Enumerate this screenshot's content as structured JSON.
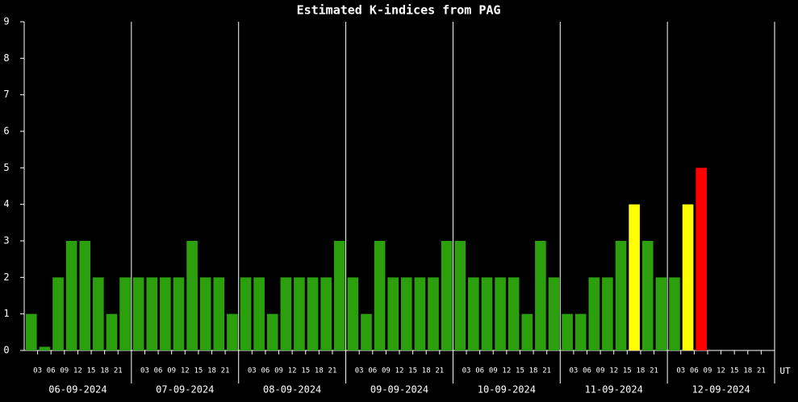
{
  "chart_data": {
    "type": "bar",
    "title": "Estimated K-indices from PAG",
    "x_unit": "UT",
    "days": [
      "06-09-2024",
      "07-09-2024",
      "08-09-2024",
      "09-09-2024",
      "10-09-2024",
      "11-09-2024",
      "12-09-2024"
    ],
    "hours": [
      "03",
      "06",
      "09",
      "12",
      "15",
      "18",
      "21"
    ],
    "values": [
      1,
      0.1,
      2,
      3,
      3,
      2,
      1,
      2,
      2,
      2,
      2,
      2,
      3,
      2,
      2,
      1,
      2,
      2,
      1,
      2,
      2,
      2,
      2,
      3,
      2,
      1,
      3,
      2,
      2,
      2,
      2,
      3,
      3,
      2,
      2,
      2,
      2,
      1,
      3,
      2,
      1,
      1,
      2,
      2,
      3,
      4,
      3,
      2,
      2,
      4,
      5,
      null,
      null,
      null,
      null,
      null
    ],
    "colors": [
      "#2ca00c",
      "#2ca00c",
      "#2ca00c",
      "#2ca00c",
      "#2ca00c",
      "#2ca00c",
      "#2ca00c",
      "#2ca00c",
      "#2ca00c",
      "#2ca00c",
      "#2ca00c",
      "#2ca00c",
      "#2ca00c",
      "#2ca00c",
      "#2ca00c",
      "#2ca00c",
      "#2ca00c",
      "#2ca00c",
      "#2ca00c",
      "#2ca00c",
      "#2ca00c",
      "#2ca00c",
      "#2ca00c",
      "#2ca00c",
      "#2ca00c",
      "#2ca00c",
      "#2ca00c",
      "#2ca00c",
      "#2ca00c",
      "#2ca00c",
      "#2ca00c",
      "#2ca00c",
      "#2ca00c",
      "#2ca00c",
      "#2ca00c",
      "#2ca00c",
      "#2ca00c",
      "#2ca00c",
      "#2ca00c",
      "#2ca00c",
      "#2ca00c",
      "#2ca00c",
      "#2ca00c",
      "#2ca00c",
      "#2ca00c",
      "#ffff00",
      "#2ca00c",
      "#2ca00c",
      "#2ca00c",
      "#ffff00",
      "#ff0000",
      null,
      null,
      null,
      null,
      null
    ],
    "ylim": [
      0,
      9
    ],
    "yticks": [
      0,
      1,
      2,
      3,
      4,
      5,
      6,
      7,
      8,
      9
    ]
  }
}
